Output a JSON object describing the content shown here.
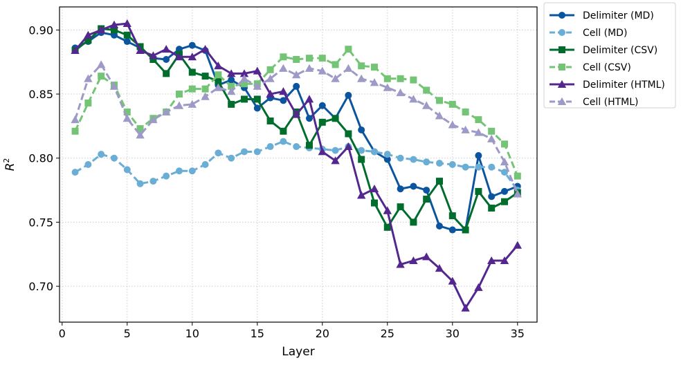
{
  "chart_data": {
    "type": "line",
    "xlabel": "Layer",
    "ylabel": "R",
    "ylabel_superscript": "2",
    "xlim": [
      -0.2,
      36.5
    ],
    "ylim": [
      0.672,
      0.918
    ],
    "xticks": [
      0,
      5,
      10,
      15,
      20,
      25,
      30,
      35
    ],
    "yticks": [
      0.7,
      0.75,
      0.8,
      0.85,
      0.9
    ],
    "ytick_labels": [
      "0.70",
      "0.75",
      "0.80",
      "0.85",
      "0.90"
    ],
    "grid": true,
    "legend_position": "outside-top-right",
    "x": [
      1,
      2,
      3,
      4,
      5,
      6,
      7,
      8,
      9,
      10,
      11,
      12,
      13,
      14,
      15,
      16,
      17,
      18,
      19,
      20,
      21,
      22,
      23,
      24,
      25,
      26,
      27,
      28,
      29,
      30,
      31,
      32,
      33,
      34,
      35
    ],
    "series": [
      {
        "name": "Delimiter (MD)",
        "color": "#0b559f",
        "dash": "solid",
        "marker": "circle",
        "values": [
          0.886,
          0.891,
          0.898,
          0.896,
          0.891,
          0.886,
          0.878,
          0.877,
          0.885,
          0.888,
          0.884,
          0.857,
          0.861,
          0.855,
          0.839,
          0.847,
          0.845,
          0.856,
          0.831,
          0.841,
          0.831,
          0.849,
          0.822,
          0.805,
          0.799,
          0.776,
          0.778,
          0.775,
          0.747,
          0.744,
          0.744,
          0.802,
          0.77,
          0.774,
          0.778
        ]
      },
      {
        "name": "Cell (MD)",
        "color": "#6aaed6",
        "dash": "dashed",
        "marker": "circle",
        "values": [
          0.789,
          0.795,
          0.803,
          0.8,
          0.791,
          0.78,
          0.782,
          0.786,
          0.79,
          0.79,
          0.795,
          0.804,
          0.8,
          0.805,
          0.805,
          0.809,
          0.813,
          0.809,
          0.808,
          0.807,
          0.806,
          0.809,
          0.806,
          0.805,
          0.803,
          0.8,
          0.799,
          0.797,
          0.796,
          0.795,
          0.793,
          0.793,
          0.793,
          0.789,
          0.775
        ]
      },
      {
        "name": "Delimiter (CSV)",
        "color": "#006d2c",
        "dash": "solid",
        "marker": "square",
        "values": [
          0.884,
          0.892,
          0.901,
          0.9,
          0.896,
          0.887,
          0.877,
          0.866,
          0.881,
          0.867,
          0.864,
          0.86,
          0.842,
          0.846,
          0.846,
          0.829,
          0.821,
          0.836,
          0.81,
          0.828,
          0.831,
          0.819,
          0.799,
          0.765,
          0.746,
          0.762,
          0.75,
          0.768,
          0.782,
          0.755,
          0.744,
          0.774,
          0.761,
          0.766,
          0.773
        ]
      },
      {
        "name": "Cell (CSV)",
        "color": "#74c476",
        "dash": "dashed",
        "marker": "square",
        "values": [
          0.821,
          0.843,
          0.864,
          0.857,
          0.836,
          0.823,
          0.831,
          0.836,
          0.85,
          0.854,
          0.854,
          0.865,
          0.856,
          0.858,
          0.858,
          0.869,
          0.879,
          0.877,
          0.878,
          0.878,
          0.873,
          0.885,
          0.872,
          0.871,
          0.862,
          0.862,
          0.861,
          0.853,
          0.845,
          0.842,
          0.836,
          0.83,
          0.821,
          0.811,
          0.786
        ]
      },
      {
        "name": "Delimiter (HTML)",
        "color": "#54278f",
        "dash": "solid",
        "marker": "triangle",
        "values": [
          0.884,
          0.896,
          0.9,
          0.904,
          0.905,
          0.884,
          0.88,
          0.885,
          0.879,
          0.879,
          0.885,
          0.872,
          0.866,
          0.866,
          0.868,
          0.85,
          0.852,
          0.834,
          0.846,
          0.805,
          0.798,
          0.809,
          0.771,
          0.776,
          0.759,
          0.717,
          0.72,
          0.723,
          0.714,
          0.704,
          0.683,
          0.699,
          0.72,
          0.72,
          0.732
        ]
      },
      {
        "name": "Cell (HTML)",
        "color": "#9e9ac8",
        "dash": "dashed",
        "marker": "triangle",
        "values": [
          0.83,
          0.862,
          0.873,
          0.856,
          0.831,
          0.818,
          0.83,
          0.836,
          0.841,
          0.842,
          0.848,
          0.855,
          0.852,
          0.862,
          0.856,
          0.862,
          0.87,
          0.865,
          0.87,
          0.868,
          0.862,
          0.87,
          0.862,
          0.859,
          0.855,
          0.851,
          0.846,
          0.841,
          0.833,
          0.826,
          0.822,
          0.82,
          0.815,
          0.797,
          0.772
        ]
      }
    ]
  }
}
